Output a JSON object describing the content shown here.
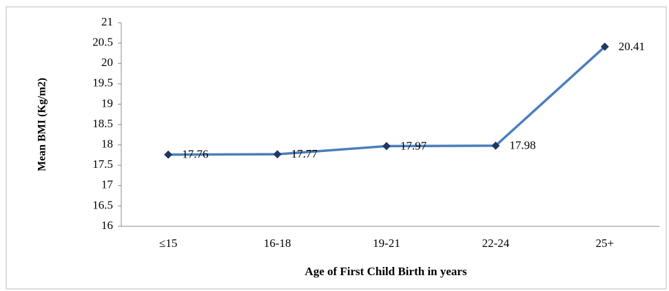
{
  "chart_data": {
    "type": "line",
    "x_label": "Age of First Child Birth in years",
    "y_label": "Mean BMI (Kg/m2)",
    "categories": [
      "≤15",
      "16-18",
      "19-21",
      "22-24",
      "25+"
    ],
    "values": [
      17.76,
      17.77,
      17.97,
      17.98,
      20.41
    ],
    "color": "#4a7ebb",
    "marker_color": "#1f3864",
    "ylim": [
      16,
      21
    ],
    "yticks": [
      16,
      16.5,
      17,
      17.5,
      18,
      18.5,
      19,
      19.5,
      20,
      20.5,
      21
    ],
    "grid": false
  }
}
